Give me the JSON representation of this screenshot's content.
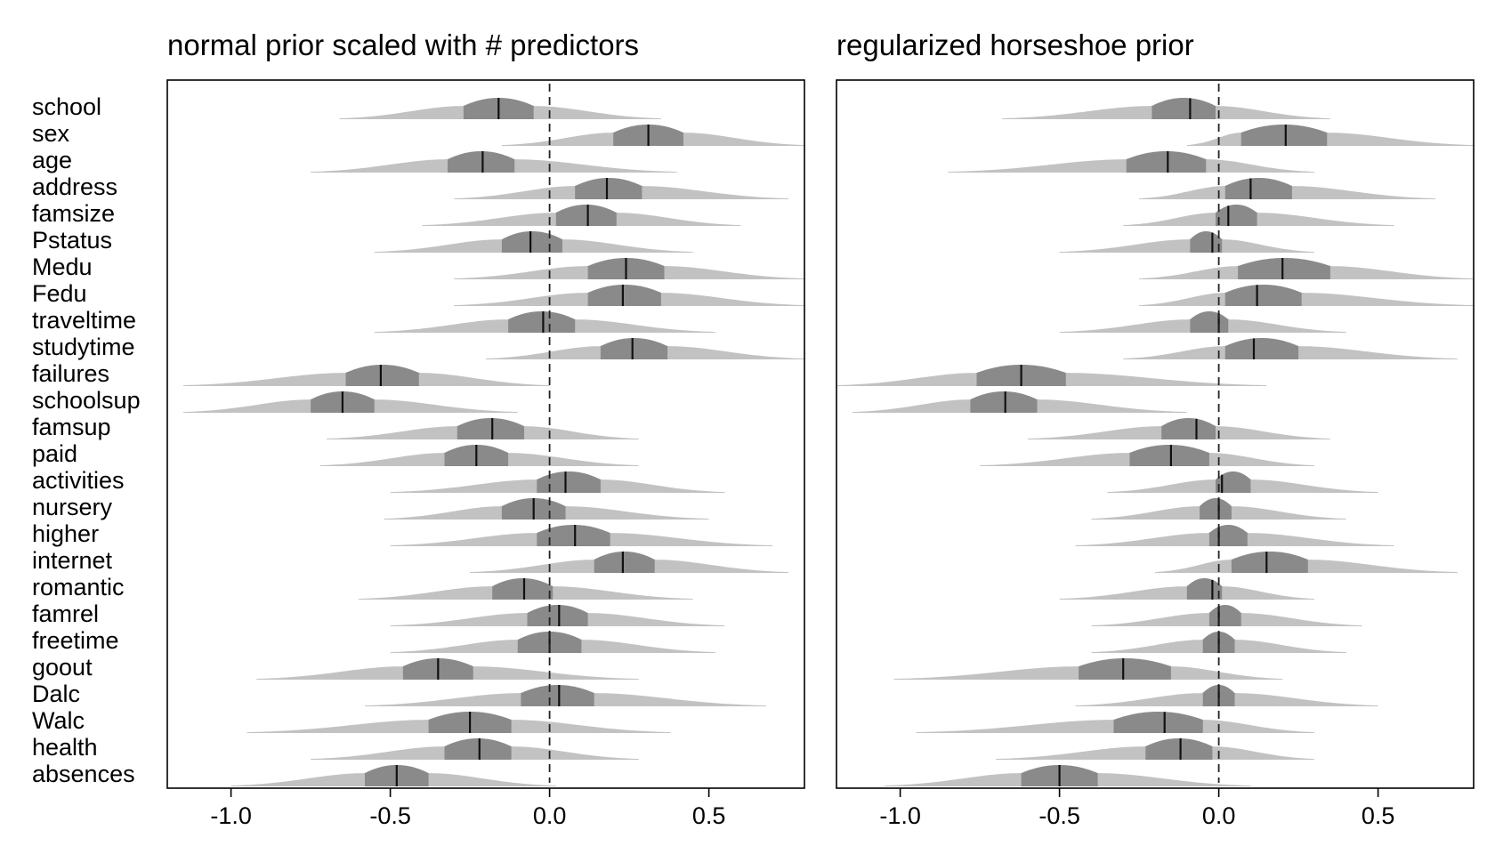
{
  "chart_data": [
    {
      "type": "ridgeline",
      "title": "normal prior scaled with # predictors",
      "xlabel": "",
      "ylabel": "",
      "xlim": [
        -1.2,
        0.8
      ],
      "xticks": [
        -1.0,
        -0.5,
        0.0,
        0.5
      ],
      "xtick_labels": [
        "-1.0",
        "-0.5",
        "0.0",
        "0.5"
      ],
      "reference_line": 0,
      "grid": false,
      "variables": [
        "school",
        "sex",
        "age",
        "address",
        "famsize",
        "Pstatus",
        "Medu",
        "Fedu",
        "traveltime",
        "studytime",
        "failures",
        "schoolsup",
        "famsup",
        "paid",
        "activities",
        "nursery",
        "higher",
        "internet",
        "romantic",
        "famrel",
        "freetime",
        "goout",
        "Dalc",
        "Walc",
        "health",
        "absences"
      ],
      "series": [
        {
          "name": "school",
          "median": -0.16,
          "q25": -0.27,
          "q75": -0.05,
          "min": -0.66,
          "max": 0.35
        },
        {
          "name": "sex",
          "median": 0.31,
          "q25": 0.2,
          "q75": 0.42,
          "min": -0.15,
          "max": 0.8
        },
        {
          "name": "age",
          "median": -0.21,
          "q25": -0.32,
          "q75": -0.11,
          "min": -0.75,
          "max": 0.4
        },
        {
          "name": "address",
          "median": 0.18,
          "q25": 0.08,
          "q75": 0.29,
          "min": -0.3,
          "max": 0.75
        },
        {
          "name": "famsize",
          "median": 0.12,
          "q25": 0.02,
          "q75": 0.21,
          "min": -0.4,
          "max": 0.6
        },
        {
          "name": "Pstatus",
          "median": -0.06,
          "q25": -0.15,
          "q75": 0.04,
          "min": -0.55,
          "max": 0.45
        },
        {
          "name": "Medu",
          "median": 0.24,
          "q25": 0.12,
          "q75": 0.36,
          "min": -0.3,
          "max": 0.8
        },
        {
          "name": "Fedu",
          "median": 0.23,
          "q25": 0.12,
          "q75": 0.35,
          "min": -0.3,
          "max": 0.8
        },
        {
          "name": "traveltime",
          "median": -0.02,
          "q25": -0.13,
          "q75": 0.08,
          "min": -0.55,
          "max": 0.52
        },
        {
          "name": "studytime",
          "median": 0.26,
          "q25": 0.16,
          "q75": 0.37,
          "min": -0.2,
          "max": 0.8
        },
        {
          "name": "failures",
          "median": -0.53,
          "q25": -0.64,
          "q75": -0.41,
          "min": -1.15,
          "max": 0.0
        },
        {
          "name": "schoolsup",
          "median": -0.65,
          "q25": -0.75,
          "q75": -0.55,
          "min": -1.15,
          "max": -0.1
        },
        {
          "name": "famsup",
          "median": -0.18,
          "q25": -0.29,
          "q75": -0.08,
          "min": -0.7,
          "max": 0.28
        },
        {
          "name": "paid",
          "median": -0.23,
          "q25": -0.33,
          "q75": -0.13,
          "min": -0.72,
          "max": 0.28
        },
        {
          "name": "activities",
          "median": 0.05,
          "q25": -0.04,
          "q75": 0.16,
          "min": -0.5,
          "max": 0.55
        },
        {
          "name": "nursery",
          "median": -0.05,
          "q25": -0.15,
          "q75": 0.05,
          "min": -0.52,
          "max": 0.5
        },
        {
          "name": "higher",
          "median": 0.08,
          "q25": -0.04,
          "q75": 0.19,
          "min": -0.5,
          "max": 0.7
        },
        {
          "name": "internet",
          "median": 0.23,
          "q25": 0.14,
          "q75": 0.33,
          "min": -0.25,
          "max": 0.75
        },
        {
          "name": "romantic",
          "median": -0.08,
          "q25": -0.18,
          "q75": 0.01,
          "min": -0.6,
          "max": 0.45
        },
        {
          "name": "famrel",
          "median": 0.03,
          "q25": -0.07,
          "q75": 0.12,
          "min": -0.5,
          "max": 0.55
        },
        {
          "name": "freetime",
          "median": 0.0,
          "q25": -0.1,
          "q75": 0.1,
          "min": -0.5,
          "max": 0.52
        },
        {
          "name": "goout",
          "median": -0.35,
          "q25": -0.46,
          "q75": -0.24,
          "min": -0.92,
          "max": 0.28
        },
        {
          "name": "Dalc",
          "median": 0.03,
          "q25": -0.09,
          "q75": 0.14,
          "min": -0.58,
          "max": 0.68
        },
        {
          "name": "Walc",
          "median": -0.25,
          "q25": -0.38,
          "q75": -0.12,
          "min": -0.95,
          "max": 0.38
        },
        {
          "name": "health",
          "median": -0.22,
          "q25": -0.33,
          "q75": -0.12,
          "min": -0.75,
          "max": 0.28
        },
        {
          "name": "absences",
          "median": -0.48,
          "q25": -0.58,
          "q75": -0.38,
          "min": -1.0,
          "max": 0.02
        }
      ]
    },
    {
      "type": "ridgeline",
      "title": "regularized horseshoe prior",
      "xlabel": "",
      "ylabel": "",
      "xlim": [
        -1.2,
        0.8
      ],
      "xticks": [
        -1.0,
        -0.5,
        0.0,
        0.5
      ],
      "xtick_labels": [
        "-1.0",
        "-0.5",
        "0.0",
        "0.5"
      ],
      "reference_line": 0,
      "grid": false,
      "series": [
        {
          "name": "school",
          "median": -0.09,
          "q25": -0.21,
          "q75": -0.01,
          "min": -0.68,
          "max": 0.35
        },
        {
          "name": "sex",
          "median": 0.21,
          "q25": 0.07,
          "q75": 0.34,
          "min": -0.1,
          "max": 0.8
        },
        {
          "name": "age",
          "median": -0.16,
          "q25": -0.29,
          "q75": -0.04,
          "min": -0.85,
          "max": 0.3
        },
        {
          "name": "address",
          "median": 0.1,
          "q25": 0.02,
          "q75": 0.23,
          "min": -0.25,
          "max": 0.68
        },
        {
          "name": "famsize",
          "median": 0.03,
          "q25": -0.01,
          "q75": 0.12,
          "min": -0.3,
          "max": 0.55
        },
        {
          "name": "Pstatus",
          "median": -0.02,
          "q25": -0.09,
          "q75": 0.01,
          "min": -0.5,
          "max": 0.3
        },
        {
          "name": "Medu",
          "median": 0.2,
          "q25": 0.06,
          "q75": 0.35,
          "min": -0.25,
          "max": 0.8
        },
        {
          "name": "Fedu",
          "median": 0.12,
          "q25": 0.02,
          "q75": 0.26,
          "min": -0.25,
          "max": 0.8
        },
        {
          "name": "traveltime",
          "median": 0.0,
          "q25": -0.09,
          "q75": 0.03,
          "min": -0.5,
          "max": 0.4
        },
        {
          "name": "studytime",
          "median": 0.11,
          "q25": 0.02,
          "q75": 0.25,
          "min": -0.3,
          "max": 0.75
        },
        {
          "name": "failures",
          "median": -0.62,
          "q25": -0.76,
          "q75": -0.48,
          "min": -1.2,
          "max": 0.15
        },
        {
          "name": "schoolsup",
          "median": -0.67,
          "q25": -0.78,
          "q75": -0.57,
          "min": -1.15,
          "max": -0.1
        },
        {
          "name": "famsup",
          "median": -0.07,
          "q25": -0.18,
          "q75": -0.01,
          "min": -0.6,
          "max": 0.35
        },
        {
          "name": "paid",
          "median": -0.15,
          "q25": -0.28,
          "q75": -0.03,
          "min": -0.75,
          "max": 0.3
        },
        {
          "name": "activities",
          "median": 0.01,
          "q25": -0.01,
          "q75": 0.1,
          "min": -0.35,
          "max": 0.5
        },
        {
          "name": "nursery",
          "median": 0.0,
          "q25": -0.06,
          "q75": 0.04,
          "min": -0.4,
          "max": 0.4
        },
        {
          "name": "higher",
          "median": 0.0,
          "q25": -0.03,
          "q75": 0.09,
          "min": -0.45,
          "max": 0.55
        },
        {
          "name": "internet",
          "median": 0.15,
          "q25": 0.04,
          "q75": 0.28,
          "min": -0.2,
          "max": 0.75
        },
        {
          "name": "romantic",
          "median": -0.02,
          "q25": -0.1,
          "q75": 0.01,
          "min": -0.5,
          "max": 0.3
        },
        {
          "name": "famrel",
          "median": 0.0,
          "q25": -0.03,
          "q75": 0.07,
          "min": -0.4,
          "max": 0.45
        },
        {
          "name": "freetime",
          "median": 0.0,
          "q25": -0.05,
          "q75": 0.05,
          "min": -0.4,
          "max": 0.4
        },
        {
          "name": "goout",
          "median": -0.3,
          "q25": -0.44,
          "q75": -0.15,
          "min": -1.02,
          "max": 0.2
        },
        {
          "name": "Dalc",
          "median": 0.0,
          "q25": -0.05,
          "q75": 0.05,
          "min": -0.45,
          "max": 0.5
        },
        {
          "name": "Walc",
          "median": -0.17,
          "q25": -0.33,
          "q75": -0.05,
          "min": -0.95,
          "max": 0.3
        },
        {
          "name": "health",
          "median": -0.12,
          "q25": -0.23,
          "q75": -0.02,
          "min": -0.7,
          "max": 0.3
        },
        {
          "name": "absences",
          "median": -0.5,
          "q25": -0.62,
          "q75": -0.38,
          "min": -1.05,
          "max": 0.1
        }
      ]
    }
  ],
  "colors": {
    "light_band": "#c2c2c2",
    "inner_band": "#8a8a8a",
    "median_line": "#111111",
    "reference_line": "#222222",
    "frame": "#000000"
  }
}
